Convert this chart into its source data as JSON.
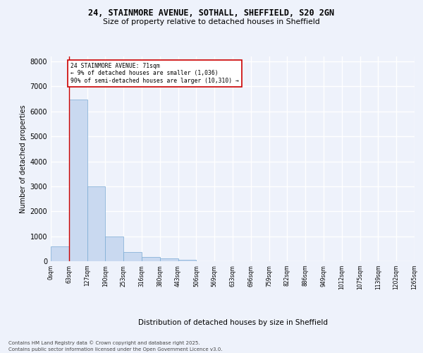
{
  "title_line1": "24, STAINMORE AVENUE, SOTHALL, SHEFFIELD, S20 2GN",
  "title_line2": "Size of property relative to detached houses in Sheffield",
  "xlabel": "Distribution of detached houses by size in Sheffield",
  "ylabel": "Number of detached properties",
  "bar_color": "#c9d9f0",
  "bar_edgecolor": "#7aaad4",
  "bar_values": [
    580,
    6480,
    3000,
    1000,
    370,
    160,
    100,
    60,
    0,
    0,
    0,
    0,
    0,
    0,
    0,
    0,
    0,
    0,
    0,
    0
  ],
  "bar_labels": [
    "0sqm",
    "63sqm",
    "127sqm",
    "190sqm",
    "253sqm",
    "316sqm",
    "380sqm",
    "443sqm",
    "506sqm",
    "569sqm",
    "633sqm",
    "696sqm",
    "759sqm",
    "822sqm",
    "886sqm",
    "949sqm",
    "1012sqm",
    "1075sqm",
    "1139sqm",
    "1202sqm",
    "1265sqm"
  ],
  "ylim": [
    0,
    8200
  ],
  "yticks": [
    0,
    1000,
    2000,
    3000,
    4000,
    5000,
    6000,
    7000,
    8000
  ],
  "vline_x": 1,
  "vline_color": "#cc0000",
  "annotation_text": "24 STAINMORE AVENUE: 71sqm\n← 9% of detached houses are smaller (1,036)\n90% of semi-detached houses are larger (10,310) →",
  "annotation_box_color": "#ffffff",
  "annotation_box_edgecolor": "#cc0000",
  "footer_line1": "Contains HM Land Registry data © Crown copyright and database right 2025.",
  "footer_line2": "Contains public sector information licensed under the Open Government Licence v3.0.",
  "background_color": "#eef2fb",
  "grid_color": "#ffffff",
  "num_bins": 20
}
